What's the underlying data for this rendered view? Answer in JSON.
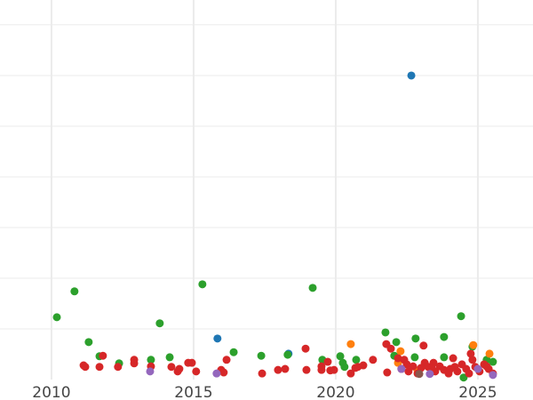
{
  "chart_data": {
    "type": "scatter",
    "title": "",
    "xlabel": "",
    "ylabel": "",
    "xlim": [
      2008.19,
      2026.94
    ],
    "ylim": [
      0,
      7.49
    ],
    "x_ticks": [
      2010,
      2015,
      2020,
      2025
    ],
    "x_tick_labels": [
      "2010",
      "2015",
      "2020",
      "2025"
    ],
    "y_gridlines": [
      1,
      2,
      3,
      4,
      5,
      6,
      7
    ],
    "grid": true,
    "legend": "none",
    "series": [
      {
        "color": "#1f77b4",
        "points": [
          [
            2022.66,
            6.0
          ],
          [
            2015.84,
            0.81
          ],
          [
            2018.34,
            0.51
          ]
        ]
      },
      {
        "color": "#2ca02c",
        "points": [
          [
            2010.19,
            1.23
          ],
          [
            2010.81,
            1.74
          ],
          [
            2011.31,
            0.74
          ],
          [
            2015.31,
            1.88
          ],
          [
            2019.19,
            1.81
          ],
          [
            2013.81,
            1.11
          ],
          [
            2011.69,
            0.46
          ],
          [
            2012.38,
            0.32
          ],
          [
            2013.5,
            0.39
          ],
          [
            2014.16,
            0.44
          ],
          [
            2016.41,
            0.54
          ],
          [
            2017.38,
            0.47
          ],
          [
            2018.31,
            0.49
          ],
          [
            2021.75,
            0.93
          ],
          [
            2022.13,
            0.74
          ],
          [
            2022.81,
            0.81
          ],
          [
            2023.81,
            0.84
          ],
          [
            2024.41,
            1.25
          ],
          [
            2024.81,
            0.65
          ],
          [
            2019.53,
            0.39
          ],
          [
            2020.16,
            0.46
          ],
          [
            2020.25,
            0.33
          ],
          [
            2020.31,
            0.25
          ],
          [
            2020.72,
            0.39
          ],
          [
            2022.06,
            0.47
          ],
          [
            2022.78,
            0.44
          ],
          [
            2023.81,
            0.44
          ],
          [
            2024.5,
            0.04
          ],
          [
            2025.53,
            0.35
          ],
          [
            2025.31,
            0.39
          ]
        ]
      },
      {
        "color": "#ff7f0e",
        "points": [
          [
            2020.53,
            0.7
          ],
          [
            2022.28,
            0.56
          ],
          [
            2024.84,
            0.68
          ],
          [
            2025.41,
            0.51
          ],
          [
            2022.19,
            0.33
          ],
          [
            2022.88,
            0.18
          ]
        ]
      },
      {
        "color": "#d62728",
        "points": [
          [
            2011.13,
            0.28
          ],
          [
            2011.19,
            0.25
          ],
          [
            2011.81,
            0.47
          ],
          [
            2011.69,
            0.25
          ],
          [
            2012.34,
            0.25
          ],
          [
            2012.91,
            0.39
          ],
          [
            2012.91,
            0.32
          ],
          [
            2013.5,
            0.26
          ],
          [
            2014.22,
            0.25
          ],
          [
            2014.44,
            0.16
          ],
          [
            2014.5,
            0.21
          ],
          [
            2014.81,
            0.33
          ],
          [
            2014.94,
            0.33
          ],
          [
            2015.09,
            0.16
          ],
          [
            2015.97,
            0.19
          ],
          [
            2016.06,
            0.14
          ],
          [
            2016.16,
            0.39
          ],
          [
            2017.41,
            0.12
          ],
          [
            2017.97,
            0.19
          ],
          [
            2018.22,
            0.21
          ],
          [
            2018.94,
            0.61
          ],
          [
            2018.97,
            0.19
          ],
          [
            2019.5,
            0.26
          ],
          [
            2019.72,
            0.35
          ],
          [
            2019.5,
            0.19
          ],
          [
            2019.81,
            0.18
          ],
          [
            2019.94,
            0.19
          ],
          [
            2020.69,
            0.23
          ],
          [
            2020.53,
            0.12
          ],
          [
            2020.78,
            0.25
          ],
          [
            2020.97,
            0.28
          ],
          [
            2021.31,
            0.39
          ],
          [
            2021.78,
            0.7
          ],
          [
            2021.94,
            0.61
          ],
          [
            2021.81,
            0.14
          ],
          [
            2022.19,
            0.42
          ],
          [
            2022.41,
            0.39
          ],
          [
            2022.31,
            0.21
          ],
          [
            2022.56,
            0.16
          ],
          [
            2022.72,
            0.26
          ],
          [
            2022.88,
            0.12
          ],
          [
            2023.09,
            0.67
          ],
          [
            2023.13,
            0.33
          ],
          [
            2023.25,
            0.25
          ],
          [
            2023.44,
            0.33
          ],
          [
            2023.5,
            0.16
          ],
          [
            2023.66,
            0.26
          ],
          [
            2023.81,
            0.19
          ],
          [
            2023.97,
            0.12
          ],
          [
            2024.13,
            0.42
          ],
          [
            2024.19,
            0.25
          ],
          [
            2024.28,
            0.16
          ],
          [
            2024.44,
            0.3
          ],
          [
            2024.59,
            0.21
          ],
          [
            2024.75,
            0.51
          ],
          [
            2024.81,
            0.39
          ],
          [
            2024.91,
            0.25
          ],
          [
            2025.06,
            0.16
          ],
          [
            2025.22,
            0.3
          ],
          [
            2025.38,
            0.21
          ],
          [
            2025.53,
            0.12
          ],
          [
            2025.31,
            0.26
          ],
          [
            2022.5,
            0.3
          ],
          [
            2023.0,
            0.23
          ],
          [
            2023.38,
            0.23
          ],
          [
            2024.03,
            0.21
          ],
          [
            2024.69,
            0.12
          ]
        ]
      },
      {
        "color": "#9467bd",
        "points": [
          [
            2013.47,
            0.16
          ],
          [
            2015.81,
            0.12
          ],
          [
            2022.31,
            0.21
          ],
          [
            2023.31,
            0.11
          ],
          [
            2025.0,
            0.21
          ],
          [
            2025.53,
            0.09
          ]
        ]
      },
      {
        "color": "#8c564b",
        "points": [
          [
            2022.94,
            0.11
          ]
        ]
      }
    ]
  }
}
